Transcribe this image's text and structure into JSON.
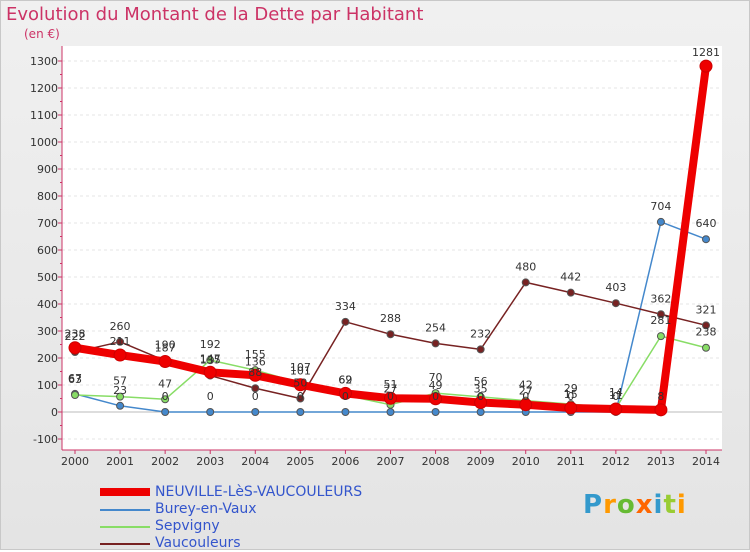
{
  "header": {
    "title": "Evolution du Montant de la Dette par Habitant",
    "unit": "(en €)"
  },
  "chart_data": {
    "type": "line",
    "title": "Evolution du Montant de la Dette par Habitant",
    "ylabel": "(en €)",
    "x": [
      2000,
      2001,
      2002,
      2003,
      2004,
      2005,
      2006,
      2007,
      2008,
      2009,
      2010,
      2011,
      2012,
      2013,
      2014
    ],
    "ylim": [
      -100,
      1300
    ],
    "yticks": [
      -100,
      0,
      100,
      200,
      300,
      400,
      500,
      600,
      700,
      800,
      900,
      1000,
      1100,
      1200,
      1300
    ],
    "series": [
      {
        "name": "NEUVILLE-LèS-VAUCOULEURS",
        "color": "#ee0000",
        "values": [
          238,
          211,
          187,
          147,
          136,
          101,
          69,
          51,
          49,
          35,
          27,
          15,
          11,
          8,
          1281
        ]
      },
      {
        "name": "Burey-en-Vaux",
        "color": "#4488cc",
        "values": [
          67,
          23,
          0,
          0,
          0,
          0,
          0,
          0,
          0,
          0,
          0,
          0,
          0,
          704,
          640
        ]
      },
      {
        "name": "Sepvigny",
        "color": "#88dd66",
        "values": [
          63,
          57,
          47,
          192,
          155,
          107,
          62,
          27,
          70,
          56,
          42,
          29,
          14,
          281,
          238
        ]
      },
      {
        "name": "Vaucouleurs",
        "color": "#772222",
        "values": [
          222,
          260,
          190,
          135,
          88,
          50,
          334,
          288,
          254,
          232,
          480,
          442,
          403,
          362,
          321
        ]
      }
    ],
    "legend_position": "bottom-left"
  },
  "branding": {
    "logo_text": "Proxiti",
    "letters": [
      "P",
      "r",
      "o",
      "x",
      "i",
      "t",
      "i"
    ],
    "letter_colors": [
      "#3399cc",
      "#ff9900",
      "#66bb33",
      "#ff6600",
      "#3399cc",
      "#99cc33",
      "#ff9900"
    ]
  }
}
